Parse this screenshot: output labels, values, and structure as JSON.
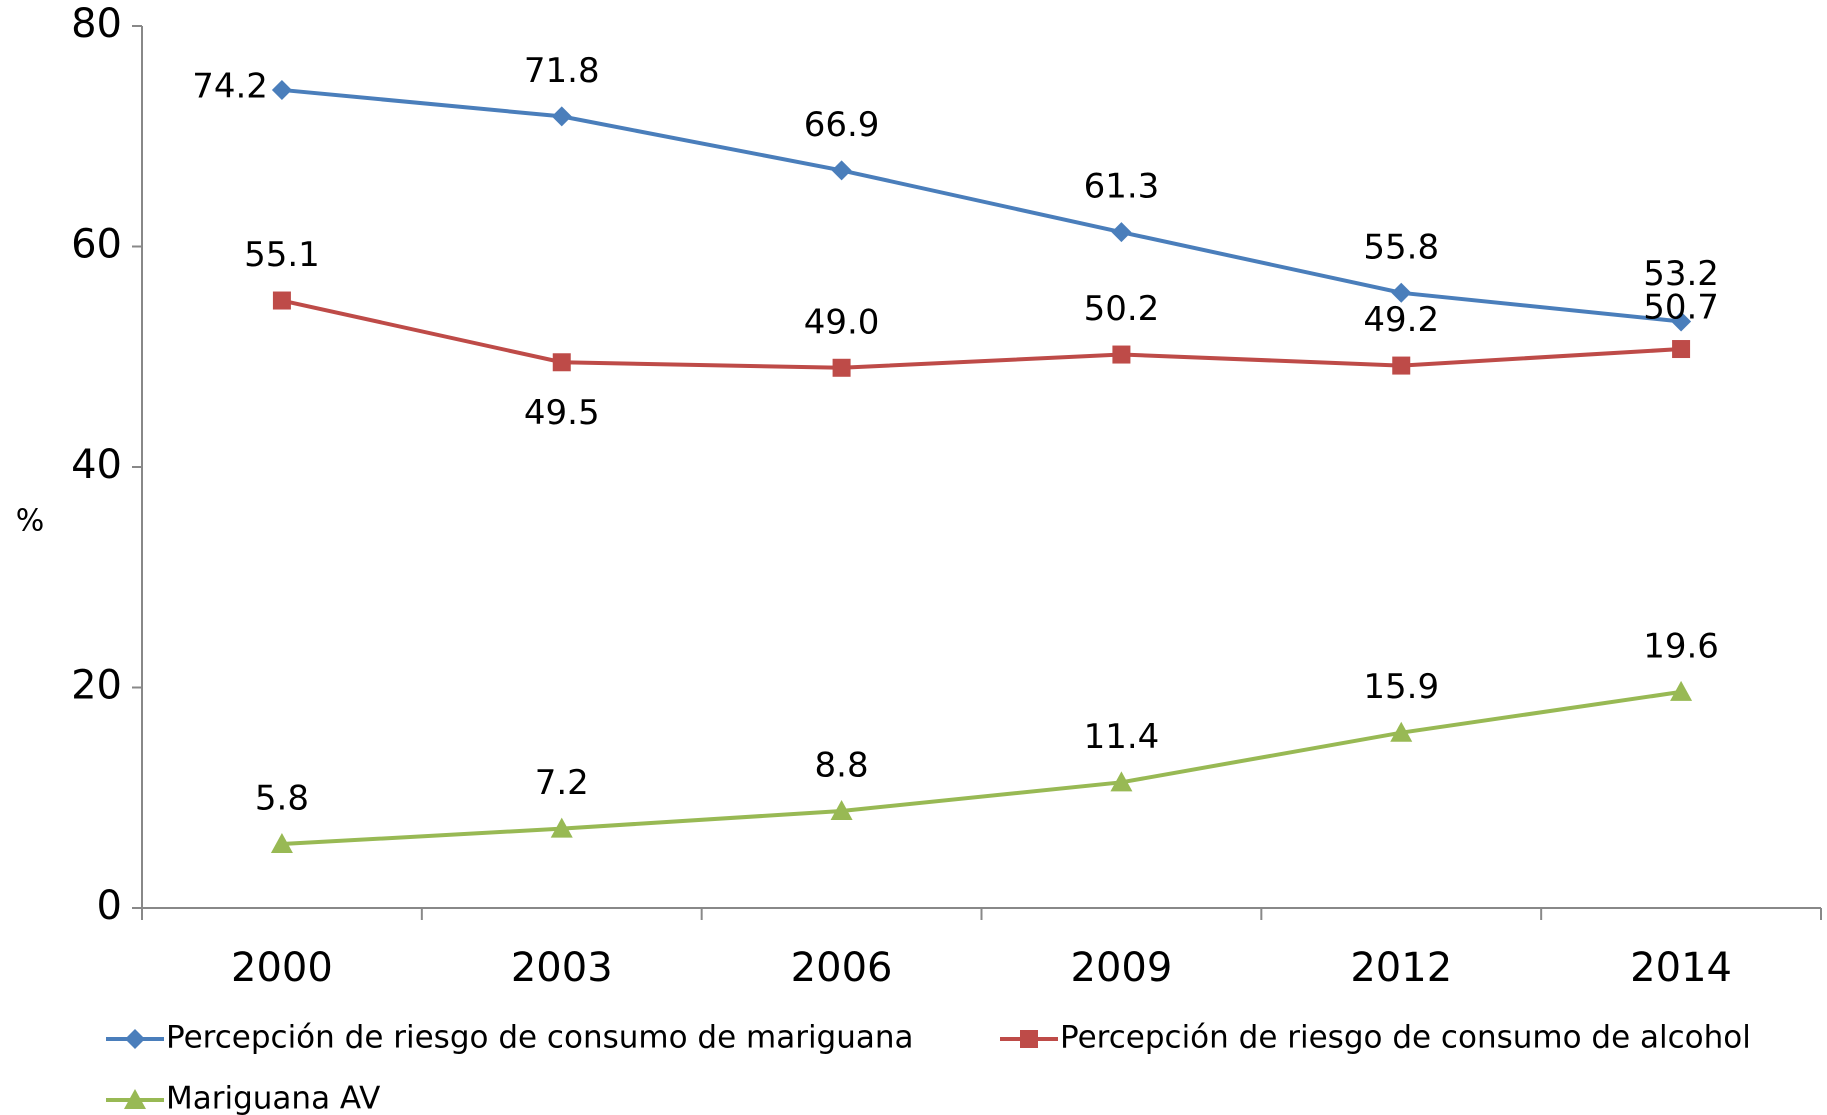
{
  "chart_data": {
    "type": "line",
    "y_label": "%",
    "categories": [
      "2000",
      "2003",
      "2006",
      "2009",
      "2012",
      "2014"
    ],
    "series": [
      {
        "name": "Percepción de riesgo de consumo de mariguana",
        "color": "#4a7ebb",
        "marker": "diamond",
        "values": [
          74.2,
          71.8,
          66.9,
          61.3,
          55.8,
          53.2
        ],
        "value_labels": [
          "74.2",
          "71.8",
          "66.9",
          "61.3",
          "55.8",
          "53.2"
        ]
      },
      {
        "name": "Percepción de riesgo de consumo de alcohol",
        "color": "#be4b48",
        "marker": "square",
        "values": [
          55.1,
          49.5,
          49.0,
          50.2,
          49.2,
          50.7
        ],
        "value_labels": [
          "55.1",
          "49.5",
          "49.0",
          "50.2",
          "49.2",
          "50.7"
        ]
      },
      {
        "name": "Mariguana AV",
        "color": "#98b954",
        "marker": "triangle",
        "values": [
          5.8,
          7.2,
          8.8,
          11.4,
          15.9,
          19.6
        ],
        "value_labels": [
          "5.8",
          "7.2",
          "8.8",
          "11.4",
          "15.9",
          "19.6"
        ]
      }
    ],
    "ylim": [
      0,
      80
    ],
    "yticks": [
      0,
      20,
      40,
      60,
      80
    ],
    "grid": false
  }
}
